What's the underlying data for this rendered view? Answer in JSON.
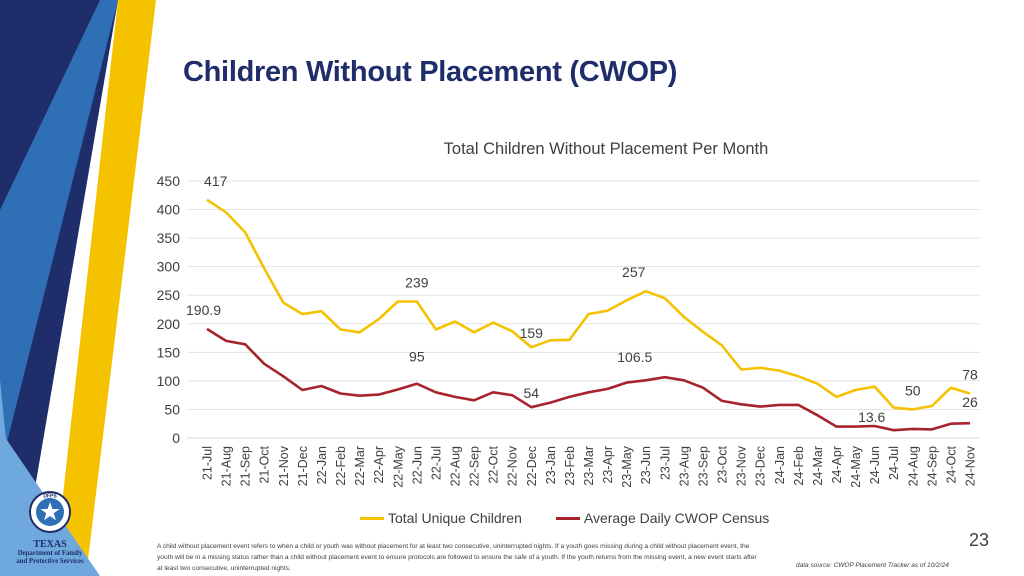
{
  "page": {
    "title": "Children Without Placement (CWOP)",
    "page_number": "23",
    "footnote": "A child without placement event refers to when a child or youth was without placement for at least two consecutive, uninterrupted nights. If a youth goes missing during a child without placement event, the youth will be in a missing status rather than a child without placement event to ensure protocols are followed to ensure the safe of a youth. If the youth returns from the missing event, a new event starts after at least two consecutive, uninterrupted nights.",
    "source_label": "data source:",
    "source_text": "CWOP Placement Tracker as of  10/2/24"
  },
  "logo": {
    "badge_text": "DFPS",
    "name": "TEXAS",
    "subtitle_line1": "Department of Family",
    "subtitle_line2": "and Protective Services"
  },
  "colors": {
    "gold": "#f5c200",
    "dark_red": "#a7232e",
    "navy": "#1f2d6b",
    "blue": "#2f6fb6",
    "light_blue": "#6fa8dc"
  },
  "chart_data": {
    "type": "line",
    "title": "Total Children Without Placement Per Month",
    "xlabel": "",
    "ylabel": "",
    "ylim": [
      0,
      450
    ],
    "yticks": [
      0,
      50,
      100,
      150,
      200,
      250,
      300,
      350,
      400,
      450
    ],
    "grid": true,
    "legend_position": "bottom",
    "categories": [
      "21-Jul",
      "21-Aug",
      "21-Sep",
      "21-Oct",
      "21-Nov",
      "21-Dec",
      "22-Jan",
      "22-Feb",
      "22-Mar",
      "22-Apr",
      "22-May",
      "22-Jun",
      "22-Jul",
      "22-Aug",
      "22-Sep",
      "22-Oct",
      "22-Nov",
      "22-Dec",
      "23-Jan",
      "23-Feb",
      "23-Mar",
      "23-Apr",
      "23-May",
      "23-Jun",
      "23-Jul",
      "23-Aug",
      "23-Sep",
      "23-Oct",
      "23-Nov",
      "23-Dec",
      "24-Jan",
      "24-Feb",
      "24-Mar",
      "24-Apr",
      "24-May",
      "24-Jun",
      "24-Jul",
      "24-Aug",
      "24-Sep",
      "24-Oct",
      "24-Nov"
    ],
    "series": [
      {
        "name": "Total Unique Children",
        "color": "#f5c200",
        "values": [
          417,
          395,
          360,
          297,
          237,
          217,
          222,
          190,
          185,
          208,
          239,
          239,
          190,
          204,
          185,
          202,
          187,
          159,
          171,
          172,
          217,
          223,
          241,
          257,
          245,
          212,
          186,
          162,
          120,
          123,
          118,
          108,
          95,
          72,
          84,
          90,
          53,
          50,
          56,
          88,
          78
        ],
        "labels": [
          {
            "index": 0,
            "text": "417"
          },
          {
            "index": 11,
            "text": "239"
          },
          {
            "index": 17,
            "text": "159"
          },
          {
            "index": 23,
            "text": "257"
          },
          {
            "index": 37,
            "text": "50"
          },
          {
            "index": 40,
            "text": "78"
          }
        ]
      },
      {
        "name": "Average Daily CWOP Census",
        "color": "#a7232e",
        "values": [
          190.9,
          170,
          164,
          130,
          108,
          84,
          91,
          78,
          74,
          76,
          85,
          95,
          80,
          72,
          66,
          80,
          75,
          54,
          62,
          72,
          80,
          86,
          97,
          101,
          106.5,
          101,
          88,
          65,
          59,
          55,
          58,
          58,
          40,
          20,
          20,
          21,
          13.6,
          16,
          15,
          25,
          26
        ],
        "labels": [
          {
            "index": 0,
            "text": "190.9"
          },
          {
            "index": 11,
            "text": "95"
          },
          {
            "index": 17,
            "text": "54"
          },
          {
            "index": 24,
            "text": "106.5"
          },
          {
            "index": 36,
            "text": "13.6"
          },
          {
            "index": 40,
            "text": "26"
          }
        ]
      }
    ]
  }
}
